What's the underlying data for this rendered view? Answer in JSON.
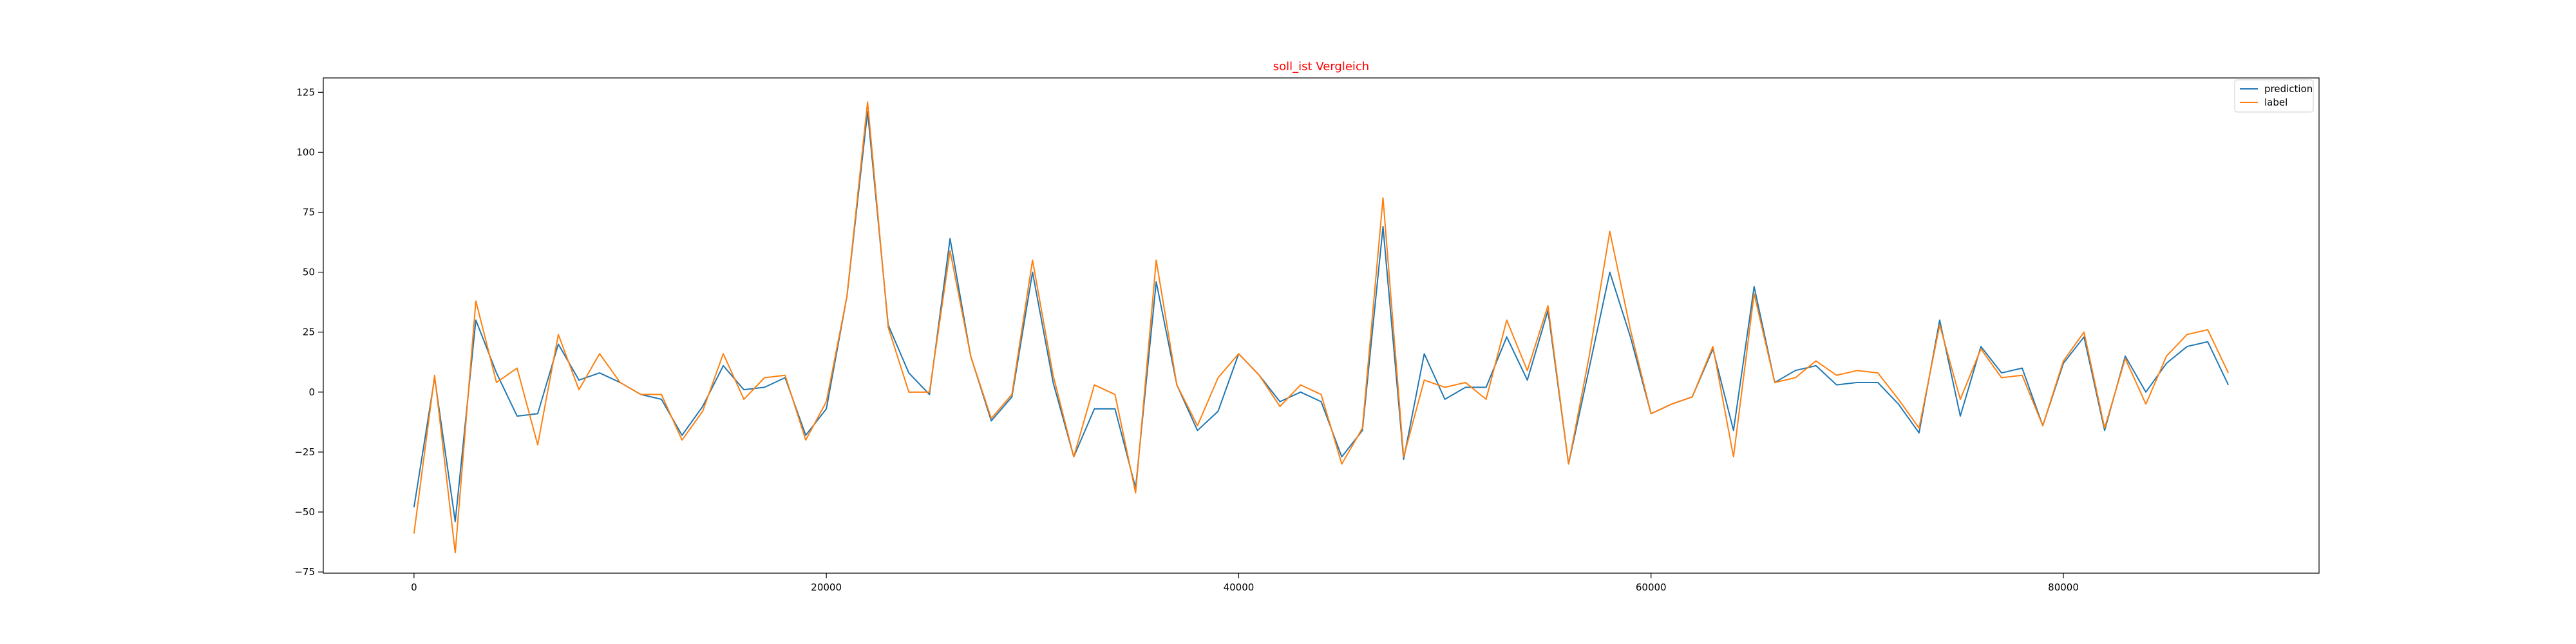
{
  "chart_data": {
    "type": "line",
    "title": "soll_ist Vergleich",
    "title_color": "#ff0000",
    "xlabel": "",
    "ylabel": "",
    "xlim": [
      -4400,
      92400
    ],
    "ylim": [
      -75.5,
      131
    ],
    "xticks": [
      0,
      20000,
      40000,
      60000,
      80000
    ],
    "xtick_labels": [
      "0",
      "20000",
      "40000",
      "60000",
      "80000"
    ],
    "yticks": [
      -75,
      -50,
      -25,
      0,
      25,
      50,
      75,
      100,
      125
    ],
    "ytick_labels": [
      "−75",
      "−50",
      "−25",
      "0",
      "25",
      "50",
      "75",
      "100",
      "125"
    ],
    "grid": false,
    "legend_position": "top-right",
    "x": [
      0,
      1000,
      2000,
      3000,
      4000,
      5000,
      6000,
      7000,
      8000,
      9000,
      10000,
      11000,
      12000,
      13000,
      14000,
      15000,
      16000,
      17000,
      18000,
      19000,
      20000,
      21000,
      22000,
      23000,
      24000,
      25000,
      26000,
      27000,
      28000,
      29000,
      30000,
      31000,
      32000,
      33000,
      34000,
      35000,
      36000,
      37000,
      38000,
      39000,
      40000,
      41000,
      42000,
      43000,
      44000,
      45000,
      46000,
      47000,
      48000,
      49000,
      50000,
      51000,
      52000,
      53000,
      54000,
      55000,
      56000,
      57000,
      58000,
      59000,
      60000,
      61000,
      62000,
      63000,
      64000,
      65000,
      66000,
      67000,
      68000,
      69000,
      70000,
      71000,
      72000,
      73000,
      74000,
      75000,
      76000,
      77000,
      78000,
      79000,
      80000,
      81000,
      82000,
      83000,
      84000,
      85000,
      86000,
      87000,
      88000
    ],
    "series": [
      {
        "name": "prediction",
        "color": "#1f77b4",
        "values": [
          -48,
          6,
          -54,
          30,
          8,
          -10,
          -9,
          20,
          5,
          8,
          4,
          -1,
          -3,
          -18,
          -6,
          11,
          1,
          2,
          6,
          -18,
          -7,
          40,
          117,
          28,
          8,
          -1,
          64,
          15,
          -12,
          -2,
          50,
          4,
          -27,
          -7,
          -7,
          -40,
          46,
          3,
          -16,
          -8,
          16,
          7,
          -4,
          0,
          -4,
          -27,
          -16,
          69,
          -28,
          16,
          -3,
          2,
          2,
          23,
          5,
          34,
          -30,
          10,
          50,
          23,
          -9,
          -5,
          -2,
          18,
          -16,
          44,
          4,
          9,
          11,
          3,
          4,
          4,
          -5,
          -17,
          30,
          -10,
          19,
          8,
          10,
          -14,
          12,
          23,
          -16,
          15,
          0,
          12,
          19,
          21,
          3
        ]
      },
      {
        "name": "label",
        "color": "#ff7f0e",
        "values": [
          -59,
          7,
          -67,
          38,
          4,
          10,
          -22,
          24,
          1,
          16,
          4,
          -1,
          -1,
          -20,
          -8,
          16,
          -3,
          6,
          7,
          -20,
          -4,
          40,
          121,
          27,
          0,
          0,
          59,
          15,
          -11,
          -1,
          55,
          7,
          -27,
          3,
          -1,
          -42,
          55,
          3,
          -14,
          6,
          16,
          7,
          -6,
          3,
          -1,
          -30,
          -15,
          81,
          -27,
          5,
          2,
          4,
          -3,
          30,
          9,
          36,
          -30,
          15,
          67,
          26,
          -9,
          -5,
          -2,
          19,
          -27,
          41,
          4,
          6,
          13,
          7,
          9,
          8,
          -3,
          -15,
          28,
          -3,
          18,
          6,
          7,
          -14,
          13,
          25,
          -15,
          14,
          -5,
          15,
          24,
          26,
          8
        ]
      }
    ]
  }
}
